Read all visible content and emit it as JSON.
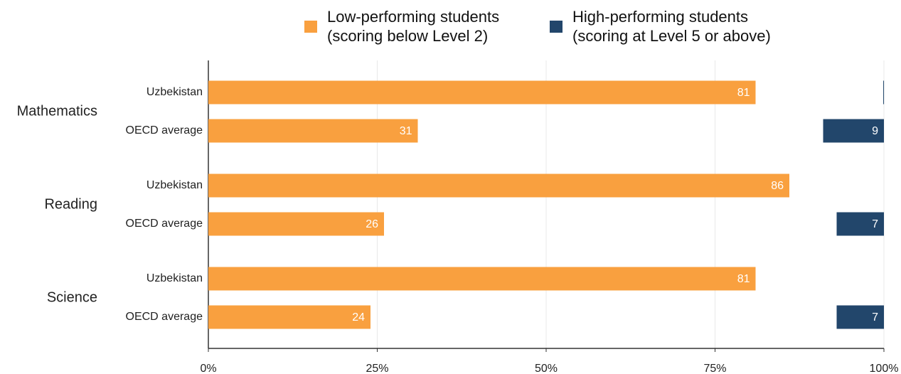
{
  "chart_data": {
    "type": "bar",
    "orientation": "horizontal",
    "groups": [
      "Mathematics",
      "Reading",
      "Science"
    ],
    "categories": [
      "Uzbekistan",
      "OECD average",
      "Uzbekistan",
      "OECD average",
      "Uzbekistan",
      "OECD average"
    ],
    "series": [
      {
        "name": "Low-performing students\n(scoring below Level 2)",
        "color": "#f9a03f",
        "align": "left",
        "values": [
          81,
          31,
          86,
          26,
          81,
          24
        ]
      },
      {
        "name": "High-performing students\n(scoring at Level 5 or above)",
        "color": "#22466b",
        "align": "right",
        "values": [
          0.1,
          9,
          0,
          7,
          0,
          7
        ]
      }
    ],
    "xlim": [
      0,
      100
    ],
    "xticks": [
      {
        "value": 0,
        "label": "0%"
      },
      {
        "value": 25,
        "label": "25%"
      },
      {
        "value": 50,
        "label": "50%"
      },
      {
        "value": 75,
        "label": "75%"
      },
      {
        "value": 100,
        "label": "100%"
      }
    ],
    "grid": true
  }
}
